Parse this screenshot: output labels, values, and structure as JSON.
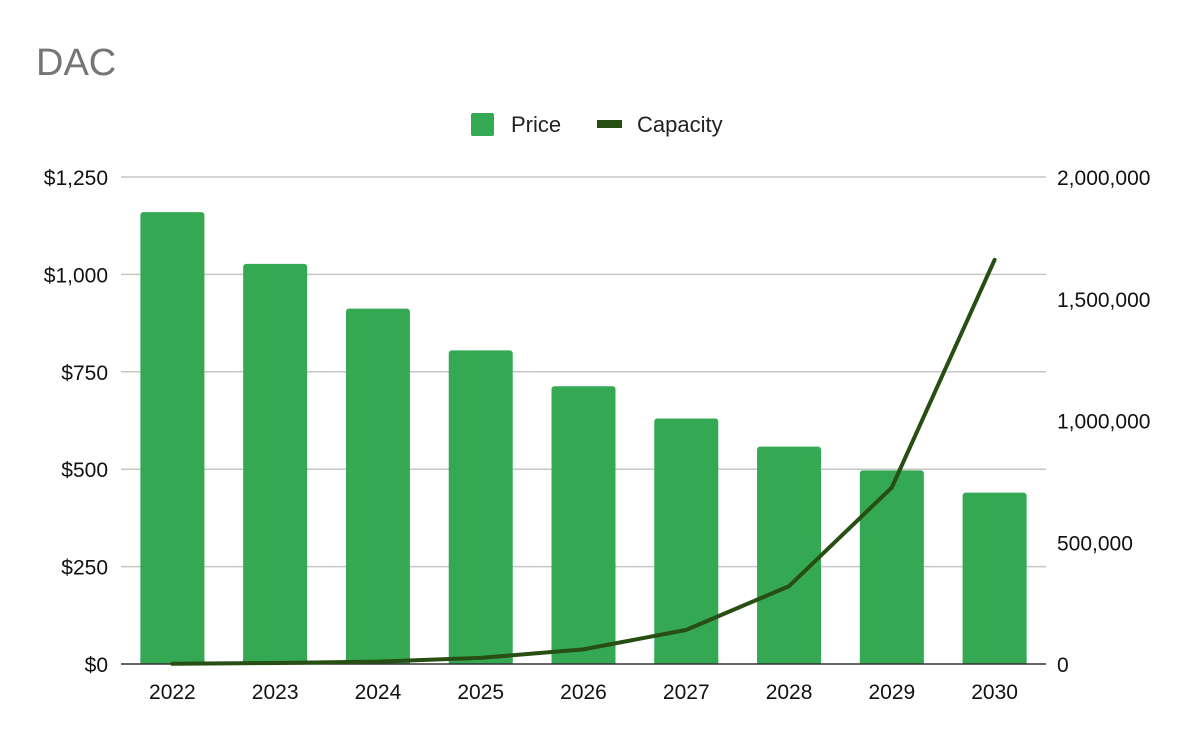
{
  "chart_data": {
    "type": "bar",
    "title": "DAC",
    "categories": [
      "2022",
      "2023",
      "2024",
      "2025",
      "2026",
      "2027",
      "2028",
      "2029",
      "2030"
    ],
    "series": [
      {
        "name": "Price",
        "type": "bar",
        "axis": "left",
        "color": "#34a853",
        "values": [
          1160,
          1027,
          912,
          805,
          713,
          630,
          558,
          497,
          440
        ]
      },
      {
        "name": "Capacity",
        "type": "line",
        "axis": "right",
        "color": "#274e13",
        "values": [
          1000,
          4000,
          10000,
          25000,
          60000,
          140000,
          320000,
          725000,
          1660000
        ]
      }
    ],
    "y_left": {
      "range": [
        0,
        1250
      ],
      "ticks": [
        0,
        250,
        500,
        750,
        1000,
        1250
      ],
      "tick_labels": [
        "$0",
        "$250",
        "$500",
        "$750",
        "$1,000",
        "$1,250"
      ]
    },
    "y_right": {
      "range": [
        0,
        2000000
      ],
      "ticks": [
        0,
        500000,
        1000000,
        1500000,
        2000000
      ],
      "tick_labels": [
        "0",
        "500,000",
        "1,000,000",
        "1,500,000",
        "2,000,000"
      ]
    },
    "legend": {
      "position": "top-center",
      "entries": [
        "Price",
        "Capacity"
      ]
    },
    "grid": true
  }
}
